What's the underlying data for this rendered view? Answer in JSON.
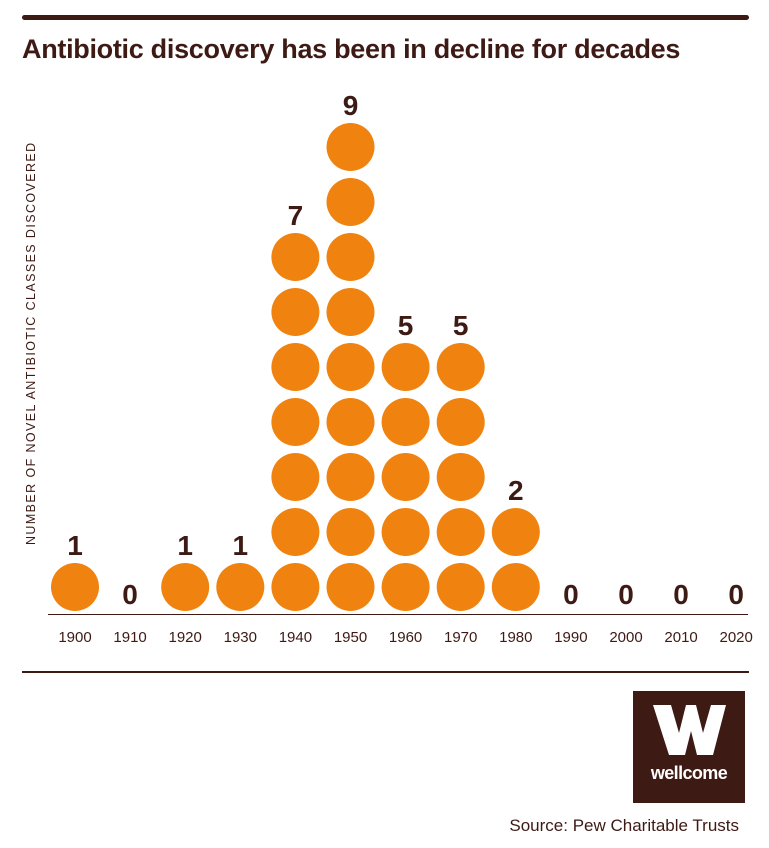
{
  "title": "Antibiotic discovery has been in decline for decades",
  "colors": {
    "dot": "#f0830f",
    "text": "#3d1a14",
    "rule": "#3d1a14",
    "logo_bg": "#3d1a14"
  },
  "source": "Source: Pew Charitable Trusts",
  "logo": {
    "wordmark": "wellcome",
    "icon": "w-logo-icon"
  },
  "chart_data": {
    "type": "bar",
    "ylabel": "NUMBER OF NOVEL ANTIBIOTIC CLASSES DISCOVERED",
    "xlabel": "",
    "categories": [
      "1900",
      "1910",
      "1920",
      "1930",
      "1940",
      "1950",
      "1960",
      "1970",
      "1980",
      "1990",
      "2000",
      "2010",
      "2020"
    ],
    "values": [
      1,
      0,
      1,
      1,
      7,
      9,
      5,
      5,
      2,
      0,
      0,
      0,
      0
    ],
    "grid": false,
    "legend": "none"
  }
}
